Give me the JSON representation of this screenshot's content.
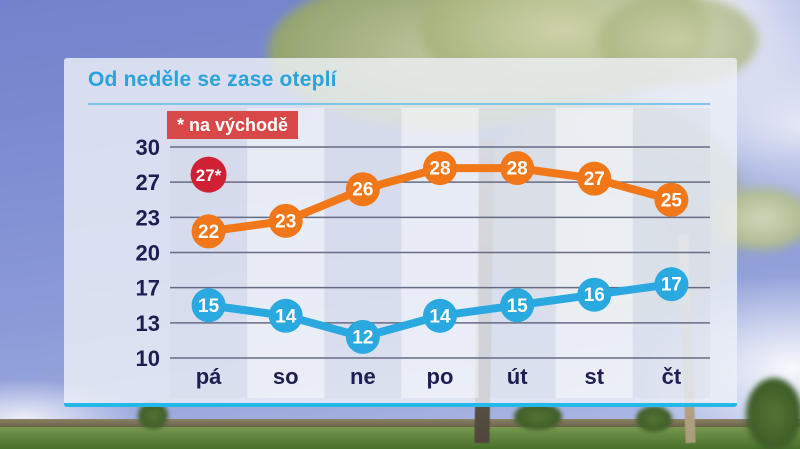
{
  "header": {
    "title": "Od neděle se zase oteplí",
    "badge_label": "* na východě"
  },
  "chart_data": {
    "type": "line",
    "title": "Od neděle se zase oteplí",
    "categories": [
      "pá",
      "so",
      "ne",
      "po",
      "út",
      "st",
      "čt"
    ],
    "series": [
      {
        "name": "denni-maxima",
        "color": "#f17718",
        "values": [
          22,
          23,
          26,
          28,
          28,
          27,
          25
        ]
      },
      {
        "name": "nocni-minima",
        "color": "#2aa9e1",
        "values": [
          15,
          14,
          12,
          14,
          15,
          16,
          17
        ]
      }
    ],
    "highlight": {
      "category": "pá",
      "value": 27,
      "label": "27*",
      "color": "#cf2133",
      "note": "* na východě"
    },
    "y_ticks": [
      30,
      27,
      23,
      20,
      17,
      13,
      10
    ],
    "ylim": [
      10,
      30
    ],
    "grid": true,
    "legend": "none"
  },
  "colors": {
    "title": "#2aa2dc",
    "title_rule": "#7cc6ec",
    "badge_bg": "#d94848",
    "axis_label": "#1e1e52",
    "gridline": "#656c84",
    "panel_border": "#24b7ea",
    "point_text": "#ffffff"
  }
}
